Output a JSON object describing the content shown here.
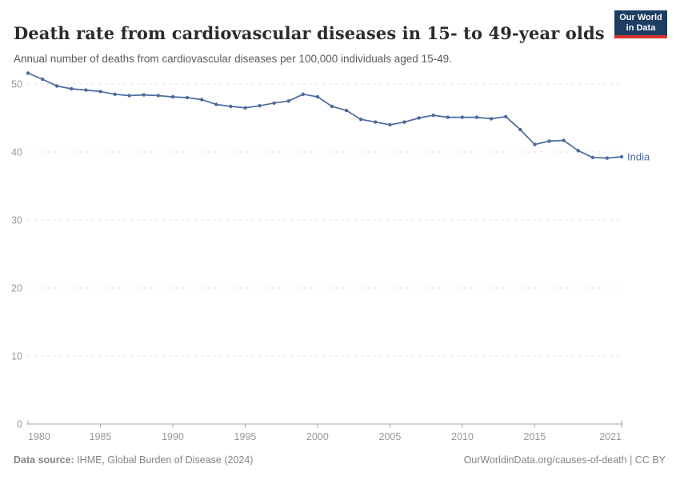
{
  "header": {
    "logo": {
      "line1": "Our World",
      "line2": "in Data",
      "bg_color": "#1d3d63",
      "accent_color": "#d2352b"
    }
  },
  "chart_data": {
    "type": "line",
    "title": "Death rate from cardiovascular diseases in 15- to 49-year olds",
    "subtitle": "Annual number of deaths from cardiovascular diseases per 100,000 individuals aged 15-49.",
    "xlabel": "",
    "ylabel": "",
    "xlim": [
      1980,
      2021
    ],
    "ylim": [
      0,
      52
    ],
    "x_ticks": [
      1980,
      1985,
      1990,
      1995,
      2000,
      2005,
      2010,
      2015,
      2021
    ],
    "y_ticks": [
      0,
      10,
      20,
      30,
      40,
      50
    ],
    "grid": "horizontal-dashed",
    "legend_position": "end-of-line-label",
    "colors": {
      "series": "#4c6a9c",
      "gridline": "#e2e2e2",
      "axis": "#a8a8a8",
      "tick_label": "#999999"
    },
    "x": [
      1980,
      1981,
      1982,
      1983,
      1984,
      1985,
      1986,
      1987,
      1988,
      1989,
      1990,
      1991,
      1992,
      1993,
      1994,
      1995,
      1996,
      1997,
      1998,
      1999,
      2000,
      2001,
      2002,
      2003,
      2004,
      2005,
      2006,
      2007,
      2008,
      2009,
      2010,
      2011,
      2012,
      2013,
      2014,
      2015,
      2016,
      2017,
      2018,
      2019,
      2020,
      2021
    ],
    "series": [
      {
        "name": "India",
        "color": "#4c6a9c",
        "values": [
          51.6,
          50.7,
          49.7,
          49.3,
          49.1,
          48.9,
          48.5,
          48.3,
          48.4,
          48.3,
          48.1,
          48.0,
          47.7,
          47.0,
          46.7,
          46.5,
          46.8,
          47.2,
          47.5,
          48.5,
          48.1,
          46.7,
          46.1,
          44.8,
          44.4,
          44.0,
          44.4,
          45.0,
          45.4,
          45.1,
          45.1,
          45.1,
          44.9,
          45.2,
          43.3,
          41.1,
          41.6,
          41.7,
          40.2,
          39.2,
          39.1,
          39.3
        ]
      }
    ]
  },
  "footer": {
    "source_label": "Data source:",
    "source_value": " IHME, Global Burden of Disease (2024)",
    "credit": "OurWorldinData.org/causes-of-death | CC BY"
  }
}
